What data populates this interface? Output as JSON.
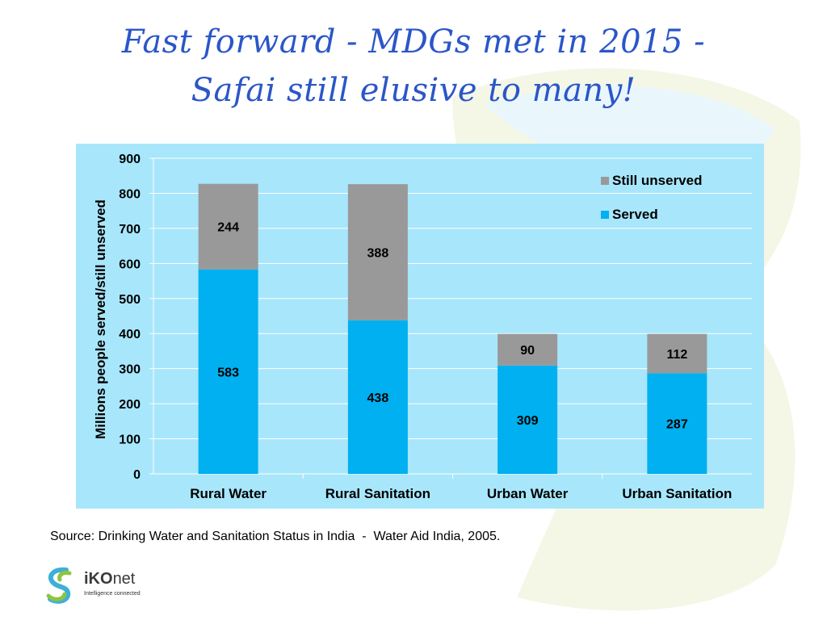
{
  "title_lines": [
    "Fast forward - MDGs met in 2015 -",
    "Safai still elusive to many!"
  ],
  "source": "Source: Drinking Water and Sanitation Status in India  -  Water Aid India, 2005.",
  "logo": {
    "name": "iKOnet",
    "name_parts": [
      "iKO",
      "net"
    ],
    "tagline": "Intelligence connected"
  },
  "colors": {
    "served": "#00b0f0",
    "unserved": "#999999",
    "panel": "#a8e6fb",
    "title": "#2b56c9"
  },
  "chart_data": {
    "type": "bar",
    "stacked": true,
    "categories": [
      "Rural Water",
      "Rural Sanitation",
      "Urban Water",
      "Urban Sanitation"
    ],
    "series": [
      {
        "name": "Served",
        "values": [
          583,
          438,
          309,
          287
        ],
        "color": "#00b0f0"
      },
      {
        "name": "Still unserved",
        "values": [
          244,
          388,
          90,
          112
        ],
        "color": "#999999"
      }
    ],
    "xlabel": "",
    "ylabel": "Millions people served/still unserved",
    "ylim": [
      0,
      900
    ],
    "yticks": [
      0,
      100,
      200,
      300,
      400,
      500,
      600,
      700,
      800,
      900
    ],
    "grid": true,
    "legend": {
      "placement": "top-right",
      "order": [
        "Still unserved",
        "Served"
      ]
    }
  }
}
